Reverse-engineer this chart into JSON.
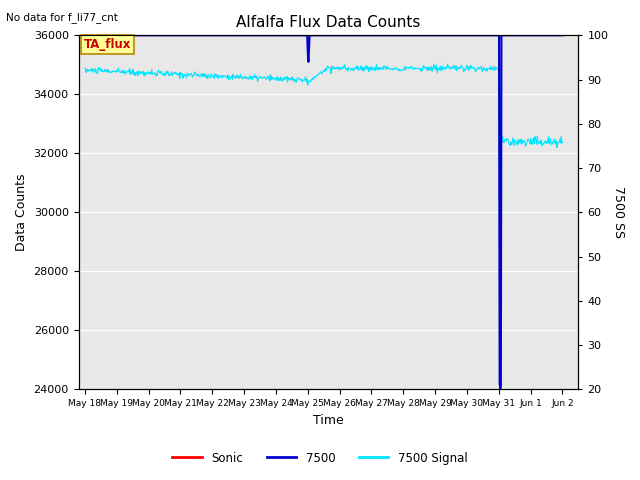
{
  "title": "Alfalfa Flux Data Counts",
  "top_left_text": "No data for f_li77_cnt",
  "ylabel_left": "Data Counts",
  "ylabel_right": "7500 SS",
  "xlabel": "Time",
  "annotation_box": "TA_flux",
  "ylim_left": [
    24000,
    36000
  ],
  "ylim_right": [
    20,
    100
  ],
  "bg_color": "#e8e8e8",
  "line_colors": {
    "sonic": "#ff0000",
    "li7500": "#0000cd",
    "signal": "#00e5ff"
  },
  "legend_entries": [
    "Sonic",
    "7500",
    "7500 Signal"
  ],
  "x_tick_labels": [
    "May 18",
    "May 19",
    "May 20",
    "May 21",
    "May 22",
    "May 23",
    "May 24",
    "May 25",
    "May 26",
    "May 27",
    "May 28",
    "May 29",
    "May 30",
    "May 31",
    "Jun 1",
    "Jun 2"
  ],
  "yticks_left": [
    24000,
    26000,
    28000,
    30000,
    32000,
    34000,
    36000
  ],
  "yticks_right": [
    20,
    30,
    40,
    50,
    60,
    70,
    80,
    90,
    100
  ],
  "n_points": 800
}
